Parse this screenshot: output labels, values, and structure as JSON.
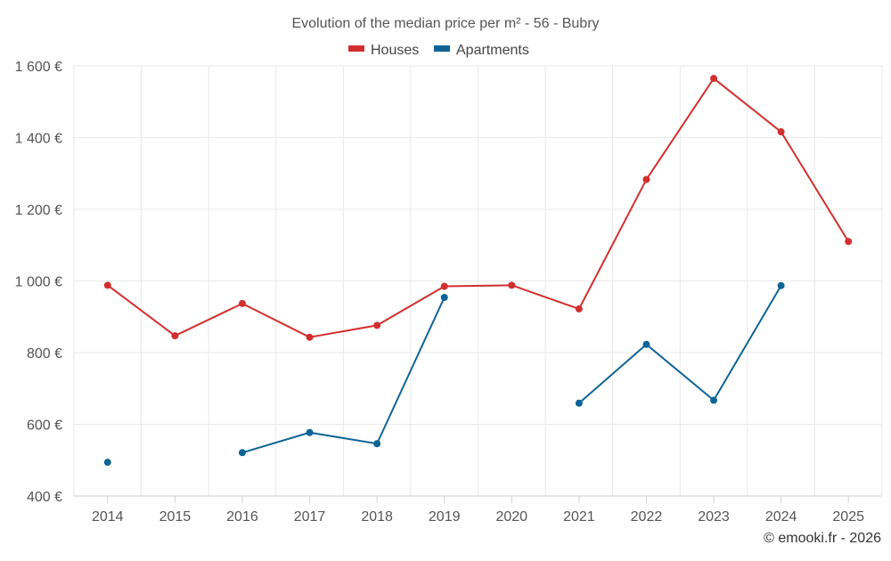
{
  "chart_data": {
    "type": "line",
    "title": "Evolution of the median price per m² - 56 - Bubry",
    "categories": [
      "2014",
      "2015",
      "2016",
      "2017",
      "2018",
      "2019",
      "2020",
      "2021",
      "2022",
      "2023",
      "2024",
      "2025"
    ],
    "ylim": [
      400,
      1600
    ],
    "y_ticks": [
      400,
      600,
      800,
      1000,
      1200,
      1400,
      1600
    ],
    "y_tick_labels": [
      "400 €",
      "600 €",
      "800 €",
      "1 000 €",
      "1 200 €",
      "1 400 €",
      "1 600 €"
    ],
    "grid": true,
    "legend_position": "top-center",
    "series": [
      {
        "name": "Houses",
        "color": "#d32f2f",
        "values": [
          988,
          847,
          937,
          843,
          876,
          985,
          988,
          922,
          1283,
          1565,
          1416,
          1110
        ]
      },
      {
        "name": "Apartments",
        "color": "#0f6496",
        "values": [
          494,
          null,
          521,
          577,
          546,
          954,
          null,
          659,
          823,
          667,
          987,
          null
        ]
      }
    ]
  },
  "credit": "© emooki.fr - 2026"
}
